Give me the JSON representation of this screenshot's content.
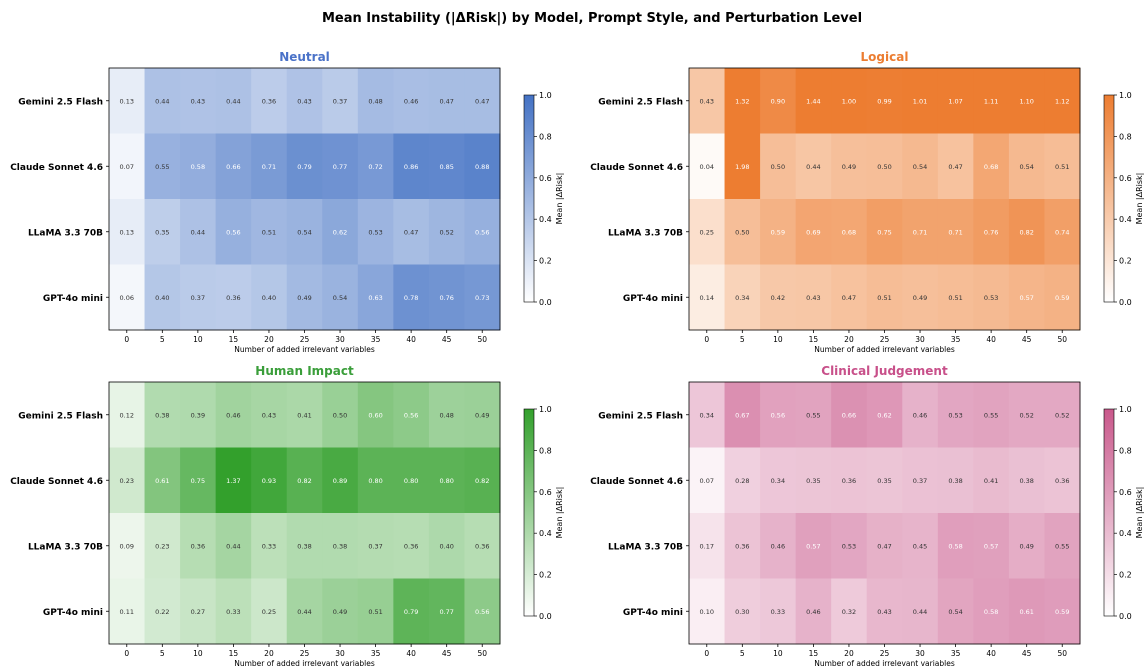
{
  "figure_title": "Mean Instability (|ΔRisk|) by Model, Prompt Style, and Perturbation Level",
  "chart_data": [
    {
      "type": "heatmap",
      "title": "Neutral",
      "title_color": "#4a72c8",
      "cmap_color": "#4472c4",
      "xlabel": "Number of added irrelevant variables",
      "x": [
        "0",
        "5",
        "10",
        "15",
        "20",
        "25",
        "30",
        "35",
        "40",
        "45",
        "50"
      ],
      "y": [
        "Gemini 2.5 Flash",
        "Claude Sonnet 4.6",
        "LLaMA 3.3 70B",
        "GPT-4o mini"
      ],
      "values": [
        [
          0.13,
          0.44,
          0.43,
          0.44,
          0.36,
          0.43,
          0.37,
          0.48,
          0.46,
          0.47,
          0.47
        ],
        [
          0.07,
          0.55,
          0.58,
          0.66,
          0.71,
          0.79,
          0.77,
          0.72,
          0.86,
          0.85,
          0.88
        ],
        [
          0.13,
          0.35,
          0.44,
          0.56,
          0.51,
          0.54,
          0.62,
          0.53,
          0.47,
          0.52,
          0.56
        ],
        [
          0.06,
          0.4,
          0.37,
          0.36,
          0.4,
          0.49,
          0.54,
          0.63,
          0.78,
          0.76,
          0.73
        ]
      ],
      "colorbar": {
        "label": "Mean |ΔRisk|",
        "range": [
          0,
          1.0
        ],
        "ticks": [
          "0.0",
          "0.2",
          "0.4",
          "0.6",
          "0.8",
          "1.0"
        ]
      }
    },
    {
      "type": "heatmap",
      "title": "Logical",
      "title_color": "#ec7d31",
      "cmap_color": "#ed7d31",
      "xlabel": "Number of added irrelevant variables",
      "x": [
        "0",
        "5",
        "10",
        "15",
        "20",
        "25",
        "30",
        "35",
        "40",
        "45",
        "50"
      ],
      "y": [
        "Gemini 2.5 Flash",
        "Claude Sonnet 4.6",
        "LLaMA 3.3 70B",
        "GPT-4o mini"
      ],
      "values": [
        [
          0.43,
          1.32,
          0.9,
          1.44,
          1.0,
          0.99,
          1.01,
          1.07,
          1.11,
          1.1,
          1.12
        ],
        [
          0.04,
          1.98,
          0.5,
          0.44,
          0.49,
          0.5,
          0.54,
          0.47,
          0.68,
          0.54,
          0.51
        ],
        [
          0.25,
          0.5,
          0.59,
          0.69,
          0.68,
          0.75,
          0.71,
          0.71,
          0.76,
          0.82,
          0.74
        ],
        [
          0.14,
          0.34,
          0.42,
          0.43,
          0.47,
          0.51,
          0.49,
          0.51,
          0.53,
          0.57,
          0.59
        ]
      ],
      "colorbar": {
        "label": "Mean |ΔRisk|",
        "range": [
          0,
          1.0
        ],
        "ticks": [
          "0.0",
          "0.2",
          "0.4",
          "0.6",
          "0.8",
          "1.0"
        ]
      }
    },
    {
      "type": "heatmap",
      "title": "Human Impact",
      "title_color": "#3a9e3a",
      "cmap_color": "#33a02c",
      "xlabel": "Number of added irrelevant variables",
      "x": [
        "0",
        "5",
        "10",
        "15",
        "20",
        "25",
        "30",
        "35",
        "40",
        "45",
        "50"
      ],
      "y": [
        "Gemini 2.5 Flash",
        "Claude Sonnet 4.6",
        "LLaMA 3.3 70B",
        "GPT-4o mini"
      ],
      "values": [
        [
          0.12,
          0.38,
          0.39,
          0.46,
          0.43,
          0.41,
          0.5,
          0.6,
          0.56,
          0.48,
          0.49
        ],
        [
          0.23,
          0.61,
          0.75,
          1.37,
          0.93,
          0.82,
          0.89,
          0.8,
          0.8,
          0.8,
          0.82
        ],
        [
          0.09,
          0.23,
          0.36,
          0.44,
          0.33,
          0.38,
          0.38,
          0.37,
          0.36,
          0.4,
          0.36
        ],
        [
          0.11,
          0.22,
          0.27,
          0.33,
          0.25,
          0.44,
          0.49,
          0.51,
          0.79,
          0.77,
          0.56
        ]
      ],
      "colorbar": {
        "label": "Mean |ΔRisk|",
        "range": [
          0,
          1.0
        ],
        "ticks": [
          "0.0",
          "0.2",
          "0.4",
          "0.6",
          "0.8",
          "1.0"
        ]
      }
    },
    {
      "type": "heatmap",
      "title": "Clinical Judgement",
      "title_color": "#c8508a",
      "cmap_color": "#c9588b",
      "xlabel": "Number of added irrelevant variables",
      "x": [
        "0",
        "5",
        "10",
        "15",
        "20",
        "25",
        "30",
        "35",
        "40",
        "45",
        "50"
      ],
      "y": [
        "Gemini 2.5 Flash",
        "Claude Sonnet 4.6",
        "LLaMA 3.3 70B",
        "GPT-4o mini"
      ],
      "values": [
        [
          0.34,
          0.67,
          0.56,
          0.55,
          0.66,
          0.62,
          0.46,
          0.53,
          0.55,
          0.52,
          0.52
        ],
        [
          0.07,
          0.28,
          0.34,
          0.35,
          0.36,
          0.35,
          0.37,
          0.38,
          0.41,
          0.38,
          0.36
        ],
        [
          0.17,
          0.36,
          0.46,
          0.57,
          0.53,
          0.47,
          0.45,
          0.58,
          0.57,
          0.49,
          0.55
        ],
        [
          0.1,
          0.3,
          0.33,
          0.46,
          0.32,
          0.43,
          0.44,
          0.54,
          0.58,
          0.61,
          0.59
        ]
      ],
      "colorbar": {
        "label": "Mean |ΔRisk|",
        "range": [
          0,
          1.0
        ],
        "ticks": [
          "0.0",
          "0.2",
          "0.4",
          "0.6",
          "0.8",
          "1.0"
        ]
      }
    }
  ]
}
